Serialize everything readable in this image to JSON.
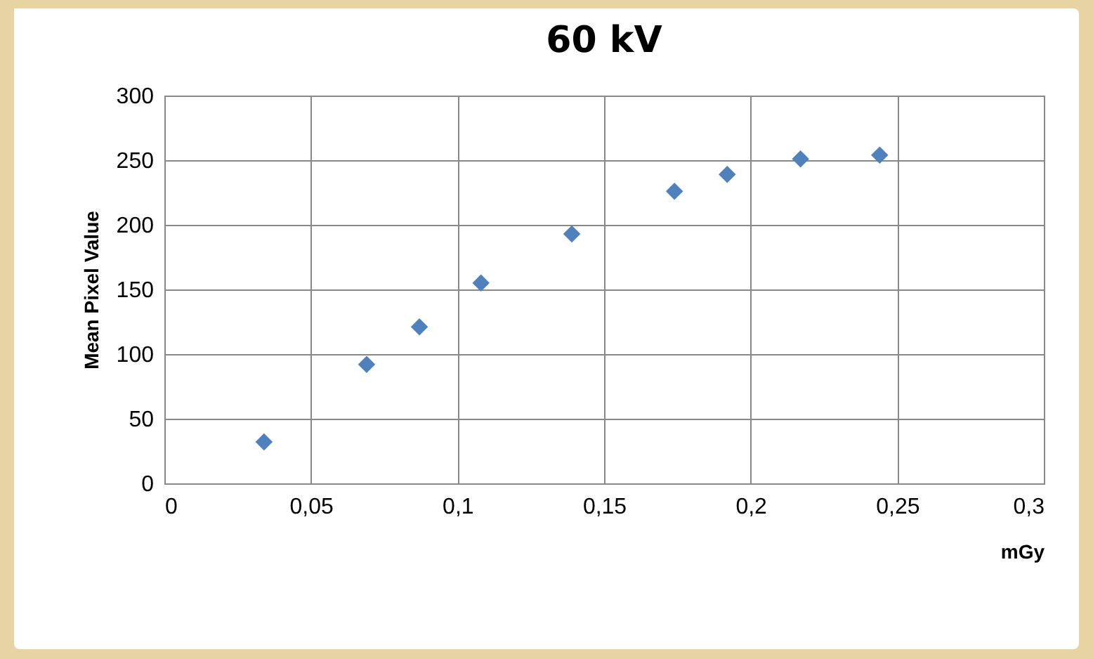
{
  "chart_data": {
    "type": "scatter",
    "title": "60 kV",
    "xlabel": "mGy",
    "ylabel": "Mean Pixel Value",
    "x": [
      0.034,
      0.069,
      0.087,
      0.108,
      0.139,
      0.174,
      0.192,
      0.217,
      0.244
    ],
    "series": [
      {
        "color": "#4f81bd",
        "values": [
          32,
          92,
          121,
          155,
          193,
          226,
          239,
          251,
          254
        ]
      }
    ],
    "xlim": [
      0,
      0.3
    ],
    "xticks": [
      0,
      {
        "value": 0.05,
        "label": "0,05"
      },
      {
        "value": 0.1,
        "label": "0,1"
      },
      {
        "value": 0.15,
        "label": "0,15"
      },
      {
        "value": 0.2,
        "label": "0,2"
      },
      {
        "value": 0.25,
        "label": "0,25"
      },
      {
        "value": 0.3,
        "label": "0,3"
      }
    ],
    "ylim": [
      0,
      300
    ],
    "yticks": [
      0,
      50,
      100,
      150,
      200,
      250,
      300
    ],
    "grid": true,
    "marker": "diamond"
  }
}
